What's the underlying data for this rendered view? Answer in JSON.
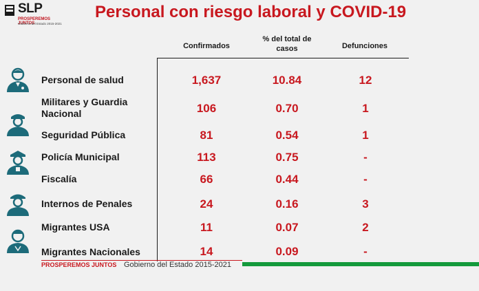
{
  "logo": {
    "name": "SLP",
    "tagline": "PROSPEREMOS JUNTOS",
    "subline": "Gobierno del Estado 2015-2021"
  },
  "title": "Personal con riesgo laboral y COVID-19",
  "columns": {
    "confirmados": "Confirmados",
    "pct_line1": "% del total de",
    "pct_line2": "casos",
    "defunciones": "Defunciones"
  },
  "rows": [
    {
      "label_1": "Personal de salud",
      "label_2": "",
      "confirmados": "1,637",
      "pct": "10.84",
      "defunciones": "12",
      "icon": "doctor-icon"
    },
    {
      "label_1": "Militares y Guardia",
      "label_2": "Nacional",
      "confirmados": "106",
      "pct": "0.70",
      "defunciones": "1",
      "icon": "soldier-icon"
    },
    {
      "label_1": "Seguridad Pública",
      "label_2": "",
      "confirmados": "81",
      "pct": "0.54",
      "defunciones": "1",
      "icon": "security-guard-icon"
    },
    {
      "label_1": "Policía Municipal",
      "label_2": "",
      "confirmados": "113",
      "pct": "0.75",
      "defunciones": "-",
      "icon": "police-icon"
    },
    {
      "label_1": "Fiscalía",
      "label_2": "",
      "confirmados": "66",
      "pct": "0.44",
      "defunciones": "-",
      "icon": ""
    },
    {
      "label_1": "Internos de Penales",
      "label_2": "",
      "confirmados": "24",
      "pct": "0.16",
      "defunciones": "3",
      "icon": "guard-icon"
    },
    {
      "label_1": "Migrantes USA",
      "label_2": "",
      "confirmados": "11",
      "pct": "0.07",
      "defunciones": "2",
      "icon": ""
    },
    {
      "label_1": "Migrantes Nacionales",
      "label_2": "",
      "confirmados": "14",
      "pct": "0.09",
      "defunciones": "-",
      "icon": "nurse-icon"
    }
  ],
  "footer": {
    "tagline": "PROSPEREMOS JUNTOS",
    "gobierno": "Gobierno del Estado 2015-2021"
  },
  "colors": {
    "title_red": "#c8181f",
    "footer_green": "#149a3c",
    "icon_teal": "#1d6b7a"
  }
}
